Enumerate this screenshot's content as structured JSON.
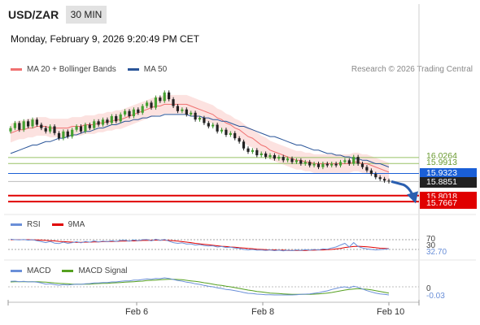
{
  "header": {
    "symbol": "USD/ZAR",
    "timeframe": "30 MIN",
    "datetime": "Monday, February 9, 2026 9:20:49 PM CET"
  },
  "legend": [
    {
      "label": "MA 20 + Bollinger Bands",
      "color": "#f07070"
    },
    {
      "label": "MA 50",
      "color": "#2a5599"
    }
  ],
  "credit": "Research © 2026 Trading Central",
  "price_levels": [
    {
      "value": "16.0264",
      "color": "#99c266",
      "style": "plain"
    },
    {
      "value": "15.9913",
      "color": "#99c266",
      "style": "plain"
    },
    {
      "value": "15.9323",
      "color": "#1a5fd6",
      "style": "box"
    },
    {
      "value": "15.8851",
      "color": "#222222",
      "style": "box"
    },
    {
      "value": "15.8018",
      "color": "#e00000",
      "style": "box"
    },
    {
      "value": "15.7667",
      "color": "#e00000",
      "style": "box"
    }
  ],
  "rsi_panel": {
    "legend": [
      {
        "label": "RSI",
        "color": "#6a8fd8"
      },
      {
        "label": "9MA",
        "color": "#e00000"
      }
    ],
    "level_70": "70",
    "level_30": "30",
    "value": "32.70"
  },
  "macd_panel": {
    "legend": [
      {
        "label": "MACD",
        "color": "#6a8fd8"
      },
      {
        "label": "MACD Signal",
        "color": "#55a020"
      }
    ],
    "zero": "0",
    "value": "-0.03"
  },
  "x_labels": [
    "Feb 6",
    "Feb 8",
    "Feb 10"
  ],
  "chart_data": {
    "type": "candlestick",
    "x_labels": [
      "Feb 6",
      "Feb 8",
      "Feb 10"
    ],
    "y_range": [
      15.7,
      16.5
    ],
    "close_series": [
      16.2,
      16.23,
      16.19,
      16.24,
      16.21,
      16.25,
      16.22,
      16.2,
      16.18,
      16.21,
      16.17,
      16.14,
      16.18,
      16.15,
      16.19,
      16.21,
      16.18,
      16.22,
      16.2,
      16.24,
      16.22,
      16.25,
      16.23,
      16.27,
      16.24,
      16.28,
      16.3,
      16.27,
      16.31,
      16.29,
      16.33,
      16.35,
      16.32,
      16.38,
      16.36,
      16.41,
      16.37,
      16.33,
      16.3,
      16.31,
      16.28,
      16.29,
      16.25,
      16.26,
      16.23,
      16.21,
      16.22,
      16.18,
      16.19,
      16.16,
      16.17,
      16.14,
      16.12,
      16.08,
      16.06,
      16.07,
      16.04,
      16.05,
      16.03,
      16.04,
      16.02,
      16.03,
      16.01,
      16.02,
      16.0,
      16.01,
      15.99,
      16.0,
      15.98,
      15.99,
      15.97,
      15.99,
      15.98,
      15.99,
      15.98,
      16.0,
      16.01,
      15.99,
      16.03,
      15.99,
      15.97,
      15.95,
      15.93,
      15.91,
      15.9,
      15.89,
      15.885
    ],
    "ma20": [
      16.17,
      16.18,
      16.19,
      16.19,
      16.2,
      16.2,
      16.21,
      16.21,
      16.21,
      16.2,
      16.2,
      16.2,
      16.2,
      16.2,
      16.21,
      16.21,
      16.21,
      16.22,
      16.22,
      16.22,
      16.23,
      16.23,
      16.24,
      16.24,
      16.25,
      16.25,
      16.26,
      16.27,
      16.28,
      16.29,
      16.3,
      16.31,
      16.32,
      16.33,
      16.33,
      16.34,
      16.34,
      16.34,
      16.34,
      16.34,
      16.34,
      16.33,
      16.32,
      16.31,
      16.3,
      16.29,
      16.28,
      16.26,
      16.25,
      16.23,
      16.22,
      16.2,
      16.19,
      16.17,
      16.15,
      16.14,
      16.12,
      16.1,
      16.09,
      16.07,
      16.06,
      16.05,
      16.04,
      16.03,
      16.02,
      16.01,
      16.01,
      16.0,
      16.0,
      15.99,
      15.99,
      15.99,
      15.99,
      15.99,
      15.99,
      15.99,
      15.99,
      15.99,
      16.0,
      16.0,
      15.99,
      15.99,
      15.98,
      15.97,
      15.96,
      15.95,
      15.94
    ],
    "ma50": [
      16.05,
      16.06,
      16.07,
      16.08,
      16.09,
      16.1,
      16.1,
      16.11,
      16.12,
      16.12,
      16.13,
      16.14,
      16.14,
      16.15,
      16.16,
      16.16,
      16.17,
      16.18,
      16.18,
      16.19,
      16.2,
      16.2,
      16.21,
      16.22,
      16.22,
      16.23,
      16.24,
      16.24,
      16.25,
      16.25,
      16.26,
      16.26,
      16.27,
      16.27,
      16.27,
      16.28,
      16.28,
      16.28,
      16.28,
      16.28,
      16.28,
      16.27,
      16.27,
      16.27,
      16.26,
      16.26,
      16.25,
      16.25,
      16.24,
      16.24,
      16.23,
      16.22,
      16.21,
      16.21,
      16.2,
      16.19,
      16.18,
      16.17,
      16.16,
      16.15,
      16.15,
      16.14,
      16.13,
      16.12,
      16.11,
      16.1,
      16.1,
      16.09,
      16.08,
      16.07,
      16.07,
      16.06,
      16.05,
      16.05,
      16.04,
      16.04,
      16.03,
      16.03,
      16.02,
      16.02,
      16.01,
      16.01,
      16.0,
      15.99,
      15.99,
      15.98,
      15.97
    ],
    "levels": [
      16.0264,
      15.9913,
      15.9323,
      15.8851,
      15.8018,
      15.7667
    ],
    "rsi": [
      72,
      70,
      69,
      71,
      68,
      70,
      66,
      62,
      58,
      63,
      56,
      54,
      60,
      55,
      58,
      62,
      57,
      63,
      60,
      65,
      61,
      64,
      62,
      66,
      63,
      67,
      68,
      64,
      69,
      66,
      70,
      71,
      65,
      72,
      67,
      71,
      64,
      58,
      55,
      57,
      52,
      53,
      48,
      50,
      46,
      44,
      45,
      40,
      42,
      38,
      39,
      36,
      34,
      30,
      28,
      30,
      27,
      28,
      26,
      28,
      25,
      27,
      24,
      27,
      25,
      28,
      26,
      29,
      27,
      30,
      28,
      32,
      31,
      36,
      40,
      48,
      55,
      40,
      58,
      42,
      36,
      32,
      30,
      28,
      29,
      31,
      32.7
    ],
    "rsi_ma": [
      70,
      70,
      70,
      70,
      70,
      69,
      69,
      68,
      67,
      66,
      65,
      63,
      62,
      61,
      60,
      59,
      59,
      60,
      60,
      61,
      61,
      62,
      62,
      63,
      63,
      64,
      64,
      65,
      65,
      66,
      67,
      67,
      68,
      68,
      68,
      68,
      67,
      66,
      64,
      62,
      60,
      58,
      55,
      53,
      51,
      49,
      47,
      45,
      43,
      42,
      40,
      39,
      37,
      36,
      34,
      33,
      31,
      30,
      29,
      28,
      28,
      27,
      27,
      26,
      26,
      26,
      26,
      26,
      27,
      27,
      28,
      28,
      29,
      30,
      32,
      34,
      38,
      40,
      42,
      43,
      42,
      41,
      39,
      37,
      35,
      34,
      33
    ],
    "macd": [
      0.02,
      0.021,
      0.019,
      0.02,
      0.018,
      0.019,
      0.017,
      0.014,
      0.01,
      0.011,
      0.008,
      0.006,
      0.008,
      0.007,
      0.008,
      0.01,
      0.009,
      0.011,
      0.012,
      0.014,
      0.014,
      0.016,
      0.016,
      0.018,
      0.018,
      0.02,
      0.022,
      0.022,
      0.025,
      0.025,
      0.027,
      0.029,
      0.028,
      0.031,
      0.03,
      0.033,
      0.031,
      0.027,
      0.023,
      0.021,
      0.017,
      0.015,
      0.011,
      0.009,
      0.005,
      0.002,
      0.0,
      -0.004,
      -0.006,
      -0.01,
      -0.011,
      -0.014,
      -0.017,
      -0.021,
      -0.024,
      -0.025,
      -0.027,
      -0.028,
      -0.029,
      -0.029,
      -0.03,
      -0.03,
      -0.03,
      -0.03,
      -0.03,
      -0.029,
      -0.028,
      -0.027,
      -0.026,
      -0.024,
      -0.022,
      -0.018,
      -0.015,
      -0.01,
      -0.006,
      -0.002,
      0.0,
      -0.004,
      0.002,
      -0.002,
      -0.008,
      -0.014,
      -0.019,
      -0.023,
      -0.026,
      -0.028,
      -0.03
    ],
    "macd_signal": [
      0.018,
      0.019,
      0.019,
      0.019,
      0.019,
      0.019,
      0.019,
      0.018,
      0.017,
      0.016,
      0.014,
      0.013,
      0.012,
      0.011,
      0.01,
      0.01,
      0.01,
      0.01,
      0.01,
      0.011,
      0.012,
      0.013,
      0.013,
      0.014,
      0.015,
      0.016,
      0.017,
      0.018,
      0.019,
      0.02,
      0.021,
      0.023,
      0.024,
      0.025,
      0.026,
      0.027,
      0.028,
      0.028,
      0.027,
      0.026,
      0.024,
      0.022,
      0.02,
      0.018,
      0.015,
      0.013,
      0.01,
      0.007,
      0.005,
      0.002,
      0.0,
      -0.003,
      -0.006,
      -0.009,
      -0.012,
      -0.014,
      -0.017,
      -0.019,
      -0.021,
      -0.023,
      -0.024,
      -0.025,
      -0.026,
      -0.027,
      -0.028,
      -0.028,
      -0.028,
      -0.028,
      -0.028,
      -0.027,
      -0.026,
      -0.025,
      -0.023,
      -0.021,
      -0.018,
      -0.015,
      -0.012,
      -0.01,
      -0.008,
      -0.007,
      -0.008,
      -0.009,
      -0.011,
      -0.014,
      -0.017,
      -0.02,
      -0.023
    ]
  }
}
